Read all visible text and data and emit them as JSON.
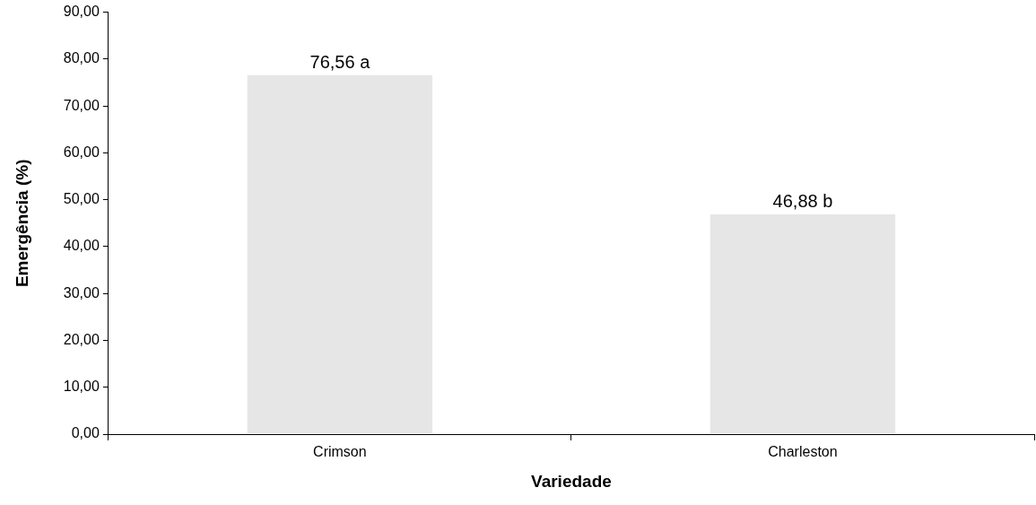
{
  "chart_data": {
    "type": "bar",
    "xlabel": "Variedade",
    "ylabel": "Emergência (%)",
    "categories": [
      "Crimson",
      "Charleston"
    ],
    "values": [
      76.56,
      46.88
    ],
    "value_labels": [
      "76,56 a",
      "46,88 b"
    ],
    "color": "#e6e6e6",
    "ylim": [
      0,
      90
    ],
    "yticks": [
      {
        "value": 0,
        "label": "0,00"
      },
      {
        "value": 10,
        "label": "10,00"
      },
      {
        "value": 20,
        "label": "20,00"
      },
      {
        "value": 30,
        "label": "30,00"
      },
      {
        "value": 40,
        "label": "40,00"
      },
      {
        "value": 50,
        "label": "50,00"
      },
      {
        "value": 60,
        "label": "60,00"
      },
      {
        "value": 70,
        "label": "70,00"
      },
      {
        "value": 80,
        "label": "80,00"
      },
      {
        "value": 90,
        "label": "90,00"
      }
    ],
    "grid": false,
    "legend": false
  }
}
